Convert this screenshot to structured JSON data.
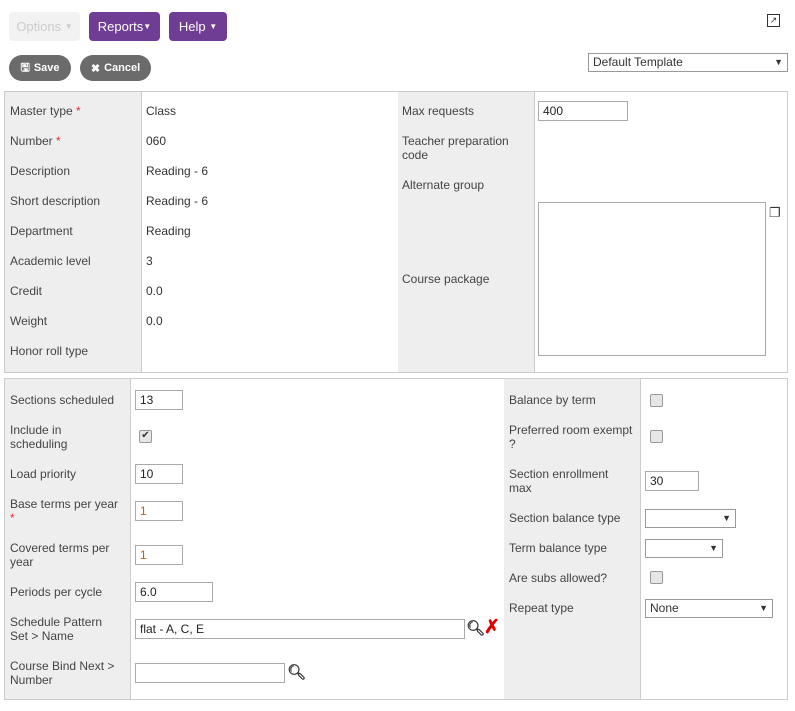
{
  "toolbar": {
    "options": "Options",
    "reports": "Reports",
    "help": "Help",
    "save": "Save",
    "cancel": "Cancel",
    "template": "Default Template"
  },
  "top_left": [
    {
      "label": "Master type",
      "required": "*",
      "value": "Class"
    },
    {
      "label": "Number",
      "required": "*",
      "value": "060"
    },
    {
      "label": "Description",
      "value": "Reading - 6"
    },
    {
      "label": "Short description",
      "value": "Reading - 6"
    },
    {
      "label": "Department",
      "value": "Reading"
    },
    {
      "label": "Academic level",
      "value": "3"
    },
    {
      "label": "Credit",
      "value": "0.0"
    },
    {
      "label": "Weight",
      "value": "0.0"
    },
    {
      "label": "Honor roll type",
      "value": ""
    }
  ],
  "top_right": {
    "max_requests_label": "Max requests",
    "max_requests": "400",
    "teacher_prep_label": "Teacher preparation code",
    "alternate_group_label": "Alternate group",
    "course_package_label": "Course package",
    "course_package": ""
  },
  "bottom_left": {
    "sections_scheduled_label": "Sections scheduled",
    "sections_scheduled": "13",
    "include_label": "Include in scheduling",
    "include_checked": true,
    "load_priority_label": "Load priority",
    "load_priority": "10",
    "base_terms_label": "Base terms per year",
    "base_terms_req": "*",
    "base_terms": "1",
    "covered_terms_label": "Covered terms per year",
    "covered_terms": "1",
    "periods_label": "Periods per cycle",
    "periods": "6.0",
    "pattern_label": "Schedule Pattern Set > Name",
    "pattern": "flat - A, C, E",
    "bind_label": "Course Bind Next > Number",
    "bind": ""
  },
  "bottom_right": {
    "balance_term_label": "Balance by term",
    "balance_term_checked": false,
    "pref_room_label": "Preferred room exempt ?",
    "pref_room_checked": false,
    "enroll_max_label": "Section enrollment max",
    "enroll_max": "30",
    "section_balance_label": "Section balance type",
    "section_balance": "",
    "term_balance_label": "Term balance type",
    "term_balance": "",
    "subs_label": "Are subs allowed?",
    "subs_checked": false,
    "repeat_label": "Repeat type",
    "repeat": "None"
  },
  "colors": {
    "accent": "#6f3d94",
    "required": "#dd3333",
    "clear": "#e00000"
  }
}
